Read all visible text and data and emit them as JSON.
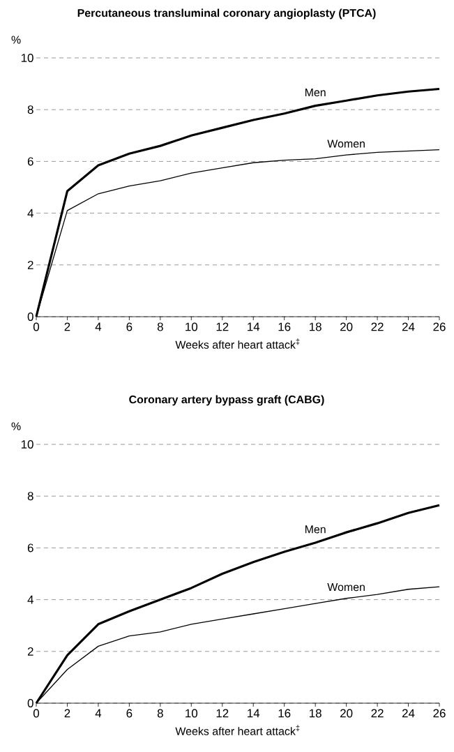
{
  "chart_data": [
    {
      "type": "line",
      "title": "Percutaneous transluminal coronary angioplasty (PTCA)",
      "xlabel": "Weeks after heart attack$^{‡}$",
      "ylabel": "%",
      "x": [
        0,
        2,
        4,
        6,
        8,
        10,
        12,
        14,
        16,
        18,
        20,
        22,
        24,
        26
      ],
      "series": [
        {
          "name": "Men",
          "color": "#000000",
          "values": [
            0,
            4.85,
            5.85,
            6.3,
            6.6,
            7.0,
            7.3,
            7.6,
            7.85,
            8.15,
            8.35,
            8.55,
            8.7,
            8.8
          ]
        },
        {
          "name": "Women",
          "color": "#000000",
          "values": [
            0,
            4.1,
            4.75,
            5.05,
            5.25,
            5.55,
            5.75,
            5.95,
            6.05,
            6.1,
            6.25,
            6.35,
            6.4,
            6.45
          ]
        }
      ],
      "xlim": [
        0,
        26
      ],
      "ylim": [
        0,
        10
      ],
      "xticks": [
        0,
        2,
        4,
        6,
        8,
        10,
        12,
        14,
        16,
        18,
        20,
        22,
        24,
        26
      ],
      "yticks": [
        0,
        2,
        4,
        6,
        8,
        10
      ],
      "grid": "y"
    },
    {
      "type": "line",
      "title": "Coronary artery bypass graft (CABG)",
      "xlabel": "Weeks after heart attack$^{‡}$",
      "ylabel": "%",
      "x": [
        0,
        2,
        4,
        6,
        8,
        10,
        12,
        14,
        16,
        18,
        20,
        22,
        24,
        26
      ],
      "series": [
        {
          "name": "Men",
          "color": "#000000",
          "values": [
            0,
            1.85,
            3.05,
            3.55,
            4.0,
            4.45,
            5.0,
            5.45,
            5.85,
            6.2,
            6.6,
            6.95,
            7.35,
            7.65
          ]
        },
        {
          "name": "Women",
          "color": "#000000",
          "values": [
            0,
            1.3,
            2.2,
            2.6,
            2.75,
            3.05,
            3.25,
            3.45,
            3.65,
            3.85,
            4.05,
            4.2,
            4.4,
            4.5
          ]
        }
      ],
      "xlim": [
        0,
        26
      ],
      "ylim": [
        0,
        10
      ],
      "xticks": [
        0,
        2,
        4,
        6,
        8,
        10,
        12,
        14,
        16,
        18,
        20,
        22,
        24,
        26
      ],
      "yticks": [
        0,
        2,
        4,
        6,
        8,
        10
      ],
      "grid": "y"
    }
  ]
}
